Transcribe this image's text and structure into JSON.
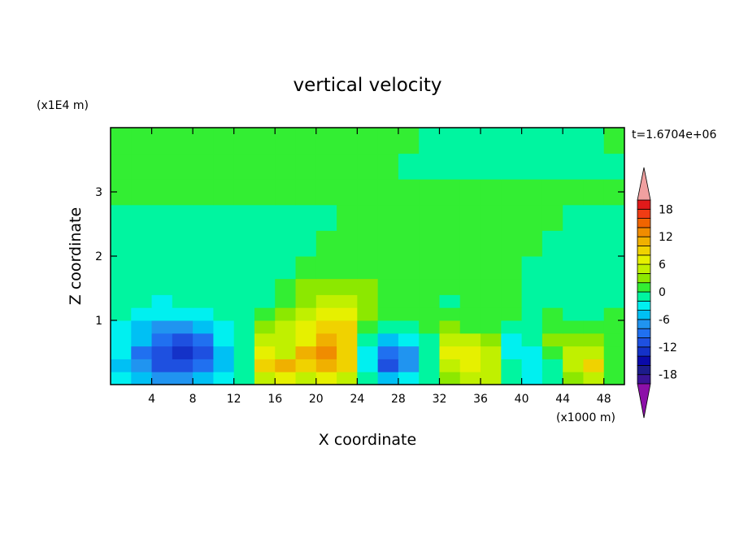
{
  "chart_data": {
    "type": "contour",
    "title": "vertical velocity",
    "x_label": "X coordinate",
    "y_label": "Z coordinate",
    "x_units": "(x1000 m)",
    "y_units": "(x1E4 m)",
    "time_label": "t=1.6704e+06",
    "xlim": [
      0,
      50
    ],
    "ylim": [
      0,
      4
    ],
    "xticks": [
      4,
      8,
      12,
      16,
      20,
      24,
      28,
      32,
      36,
      40,
      44,
      48
    ],
    "yticks": [
      1,
      2,
      3
    ],
    "x": [
      1,
      3,
      5,
      7,
      9,
      11,
      13,
      15,
      17,
      19,
      21,
      23,
      25,
      27,
      29,
      31,
      33,
      35,
      37,
      39,
      41,
      43,
      45,
      47,
      49
    ],
    "y": [
      0.1,
      0.3,
      0.5,
      0.7,
      0.9,
      1.1,
      1.3,
      1.5,
      1.8,
      2.2,
      2.6,
      3.0,
      3.4,
      3.8
    ],
    "z": [
      [
        -3,
        -5,
        -7,
        -8,
        -6,
        -3,
        -1,
        5,
        7,
        5,
        6,
        4,
        -1,
        -5,
        -3,
        -1,
        3,
        5,
        4,
        -1,
        -3,
        -1,
        3,
        5,
        1
      ],
      [
        -5,
        -8,
        -11,
        -12,
        -10,
        -5,
        -1,
        9,
        11,
        9,
        11,
        8,
        -3,
        -11,
        -7,
        -2,
        5,
        7,
        5,
        -2,
        -4,
        -1,
        5,
        8,
        1
      ],
      [
        -4,
        -9,
        -12,
        -14,
        -11,
        -5,
        -1,
        7,
        5,
        11,
        13,
        9,
        -3,
        -10,
        -8,
        -2,
        6,
        6,
        5,
        -3,
        -3,
        1,
        4,
        5,
        1
      ],
      [
        -3,
        -6,
        -10,
        -12,
        -9,
        -4,
        -1,
        5,
        4,
        7,
        11,
        9,
        -1,
        -5,
        -4,
        -1,
        4,
        4,
        3,
        -3,
        -2,
        2,
        2,
        2,
        1
      ],
      [
        -3,
        -5,
        -7,
        -8,
        -6,
        -3,
        -1,
        3,
        4,
        6,
        8,
        9,
        1,
        -2,
        -1,
        1,
        2,
        1,
        1,
        -2,
        -1,
        1,
        1,
        1,
        1
      ],
      [
        -2,
        -3,
        -4,
        -4,
        -3,
        -2,
        -1,
        1,
        3,
        5,
        6,
        6,
        2,
        1,
        1,
        1,
        1,
        1,
        1,
        1,
        -1,
        1,
        -1,
        -1,
        1
      ],
      [
        -1,
        -2,
        -3,
        -2,
        -1,
        -1,
        -2,
        -1,
        1,
        3,
        4,
        4,
        3,
        1,
        1,
        1,
        -1,
        1,
        1,
        1,
        -1,
        -1,
        -1,
        -1,
        -1
      ],
      [
        -1,
        -1,
        -1,
        -1,
        -1,
        -1,
        -2,
        -1,
        1,
        2,
        3,
        3,
        2,
        1,
        1,
        1,
        1,
        1,
        1,
        1,
        -1,
        -1,
        -1,
        -1,
        -1
      ],
      [
        -1,
        -1,
        -1,
        -1,
        -1,
        -1,
        -1,
        -1,
        -1,
        1,
        1,
        1,
        1,
        1,
        1,
        1,
        1,
        1,
        1,
        1,
        -1,
        -1,
        -1,
        -1,
        -1
      ],
      [
        -1,
        -1,
        -1,
        -1,
        -1,
        -1,
        -1,
        -1,
        -1,
        -1,
        1,
        1,
        1,
        1,
        1,
        1,
        1,
        1,
        1,
        1,
        1,
        -1,
        -1,
        -1,
        -1
      ],
      [
        -1,
        -1,
        -1,
        -1,
        -1,
        -1,
        -1,
        -1,
        -1,
        -1,
        -1,
        1,
        1,
        1,
        1,
        1,
        1,
        1,
        1,
        1,
        1,
        1,
        -1,
        -1,
        -1
      ],
      [
        1,
        1,
        1,
        1,
        1,
        1,
        1,
        1,
        1,
        1,
        1,
        1,
        1,
        1,
        1,
        1,
        1,
        1,
        1,
        1,
        1,
        1,
        1,
        1,
        1
      ],
      [
        1,
        1,
        1,
        1,
        1,
        1,
        1,
        1,
        1,
        1,
        1,
        1,
        1,
        1,
        -1,
        -1,
        -1,
        -1,
        -1,
        -1,
        -1,
        -1,
        -1,
        -1,
        -1
      ],
      [
        1,
        1,
        1,
        1,
        1,
        1,
        1,
        1,
        1,
        1,
        1,
        1,
        1,
        1,
        1,
        -1,
        -1,
        -1,
        -1,
        -1,
        -1,
        -1,
        -1,
        -1,
        1
      ]
    ],
    "levels": [
      -20,
      -18,
      -16,
      -14,
      -12,
      -10,
      -8,
      -6,
      -4,
      -2,
      0,
      2,
      4,
      6,
      8,
      10,
      12,
      14,
      16,
      18,
      20
    ],
    "colors": [
      "#3a1496",
      "#1c1c8c",
      "#0a0aaa",
      "#1432c8",
      "#1e50e0",
      "#2070f0",
      "#2094f0",
      "#00c0f4",
      "#00f0f0",
      "#00f5a0",
      "#33ee33",
      "#8ce800",
      "#c0f000",
      "#e6f000",
      "#f0d200",
      "#f0b000",
      "#f08c00",
      "#f06400",
      "#f03c14",
      "#e01a1a"
    ],
    "under_color": "#8c10a8",
    "over_color": "#f0a0a0",
    "colorbar_ticks": [
      -18,
      -12,
      -6,
      0,
      6,
      12,
      18
    ]
  }
}
